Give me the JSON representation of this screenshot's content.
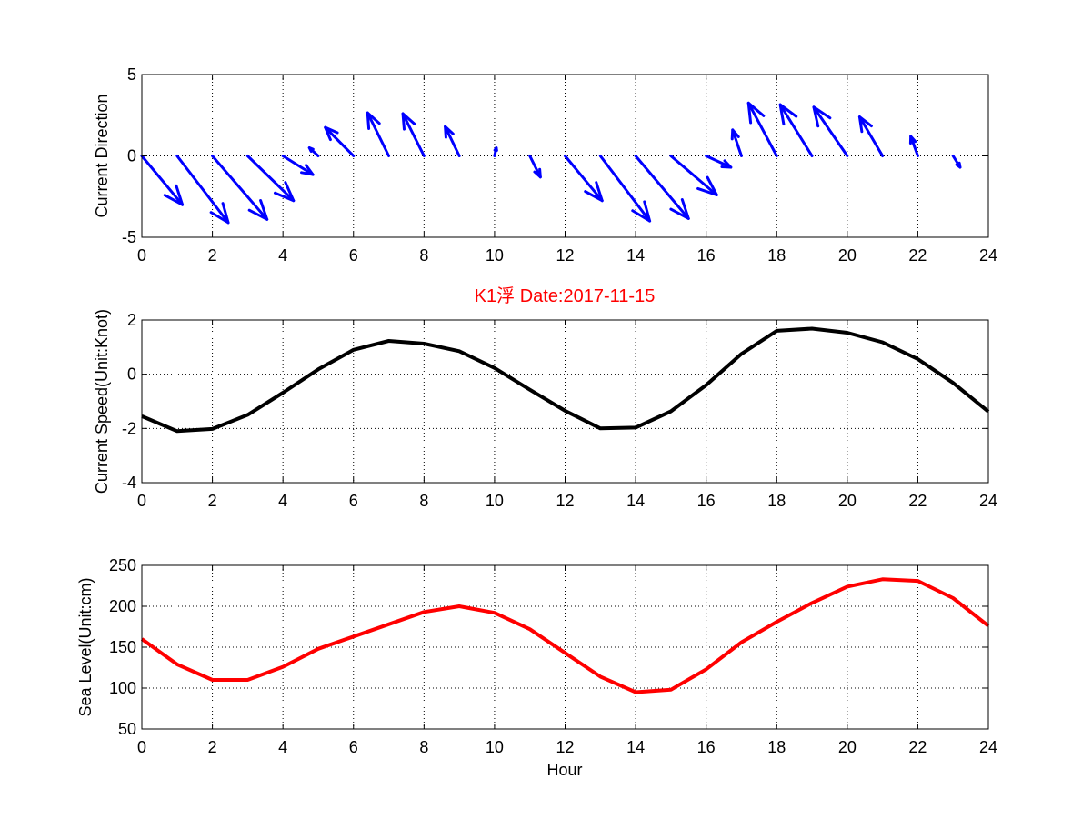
{
  "colors": {
    "background": "#ffffff",
    "axes": "#000000",
    "grid": "#000000",
    "current_direction": "#0000ff",
    "current_speed": "#000000",
    "sea_level": "#ff0000",
    "title": "#ff0000"
  },
  "figure": {
    "title": "K1浮   Date:2017-11-15",
    "xlabel": "Hour"
  },
  "chart_data": [
    {
      "type": "quiver",
      "ylabel": "Current Direction",
      "xlim": [
        0,
        24
      ],
      "ylim": [
        -5,
        5
      ],
      "xticks": [
        0,
        2,
        4,
        6,
        8,
        10,
        12,
        14,
        16,
        18,
        20,
        22,
        24
      ],
      "yticks": [
        -5,
        0,
        5
      ],
      "grid": true,
      "x": [
        0,
        1,
        2,
        3,
        4,
        5,
        6,
        7,
        8,
        9,
        10,
        11,
        12,
        13,
        14,
        15,
        16,
        17,
        18,
        19,
        20,
        21,
        22,
        23
      ],
      "u": [
        1.15,
        1.45,
        1.55,
        1.3,
        0.85,
        -0.25,
        -0.8,
        -0.6,
        -0.6,
        -0.4,
        0.05,
        0.3,
        1.05,
        1.4,
        1.5,
        1.3,
        0.7,
        -0.25,
        -0.8,
        -0.9,
        -0.95,
        -0.65,
        -0.2,
        0.2
      ],
      "v": [
        -3.0,
        -4.1,
        -3.9,
        -2.75,
        -1.15,
        0.5,
        1.75,
        2.65,
        2.6,
        1.8,
        0.5,
        -1.3,
        -2.75,
        -4.0,
        -3.85,
        -2.4,
        -0.7,
        1.6,
        3.25,
        3.15,
        3.0,
        2.4,
        1.2,
        -0.7
      ],
      "arrow_color": "#0000ff"
    },
    {
      "type": "line",
      "ylabel": "Current Speed(Unit:Knot)",
      "xlim": [
        0,
        24
      ],
      "ylim": [
        -4,
        2
      ],
      "xticks": [
        0,
        2,
        4,
        6,
        8,
        10,
        12,
        14,
        16,
        18,
        20,
        22,
        24
      ],
      "yticks": [
        -4,
        -2,
        0,
        2
      ],
      "grid": true,
      "x": [
        0,
        1,
        2,
        3,
        4,
        5,
        6,
        7,
        8,
        9,
        10,
        11,
        12,
        13,
        14,
        15,
        16,
        17,
        18,
        19,
        20,
        21,
        22,
        23,
        24
      ],
      "y": [
        -1.55,
        -2.1,
        -2.02,
        -1.5,
        -0.68,
        0.18,
        0.9,
        1.23,
        1.13,
        0.85,
        0.23,
        -0.57,
        -1.35,
        -2.0,
        -1.97,
        -1.37,
        -0.4,
        0.75,
        1.6,
        1.68,
        1.53,
        1.18,
        0.56,
        -0.32,
        -1.38
      ],
      "color": "#000000"
    },
    {
      "type": "line",
      "ylabel": "Sea Level(Unit:cm)",
      "xlabel": "Hour",
      "xlim": [
        0,
        24
      ],
      "ylim": [
        50,
        250
      ],
      "xticks": [
        0,
        2,
        4,
        6,
        8,
        10,
        12,
        14,
        16,
        18,
        20,
        22,
        24
      ],
      "yticks": [
        50,
        100,
        150,
        200,
        250
      ],
      "grid": true,
      "x": [
        0,
        1,
        2,
        3,
        4,
        5,
        6,
        7,
        8,
        9,
        10,
        11,
        12,
        13,
        14,
        15,
        16,
        17,
        18,
        19,
        20,
        21,
        22,
        23,
        24
      ],
      "y": [
        160,
        129,
        110,
        110,
        126,
        148,
        163,
        178,
        193,
        200,
        192,
        172,
        143,
        114,
        95,
        98,
        123,
        156,
        181,
        204,
        224,
        233,
        231,
        210,
        176
      ],
      "color": "#ff0000"
    }
  ]
}
